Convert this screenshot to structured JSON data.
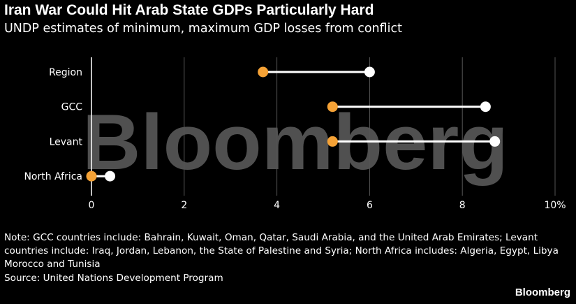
{
  "title": "Iran War Could Hit Arab State GDPs Particularly Hard",
  "subtitle": "UNDP estimates of minimum, maximum GDP losses from conflict",
  "watermark": "Bloomberg",
  "note": "Note: GCC countries include: Bahrain, Kuwait, Oman, Qatar, Saudi Arabia, and the United Arab Emirates; Levant countries include: Iraq, Jordan, Lebanon, the State of Palestine and Syria; North Africa includes: Algeria, Egypt, Libya Morocco and Tunisia",
  "source": "Source: United Nations Development Program",
  "brand": "Bloomberg",
  "chart_data": {
    "type": "dumbbell",
    "categories": [
      "Region",
      "GCC",
      "Levant",
      "North Africa"
    ],
    "series": [
      {
        "key": "min",
        "values": [
          3.7,
          5.2,
          5.2,
          0.0
        ],
        "color": "#f5a236"
      },
      {
        "key": "max",
        "values": [
          6.0,
          8.5,
          8.7,
          0.4
        ],
        "color": "#ffffff"
      }
    ],
    "xticks": [
      0,
      2,
      4,
      6,
      8,
      10
    ],
    "xtick_labels": [
      "0",
      "2",
      "4",
      "6",
      "8",
      "10%"
    ],
    "xlim": [
      0,
      10
    ],
    "grid": true,
    "colors": {
      "background": "#000000",
      "grid": "#555555",
      "connector": "#ffffff"
    }
  }
}
